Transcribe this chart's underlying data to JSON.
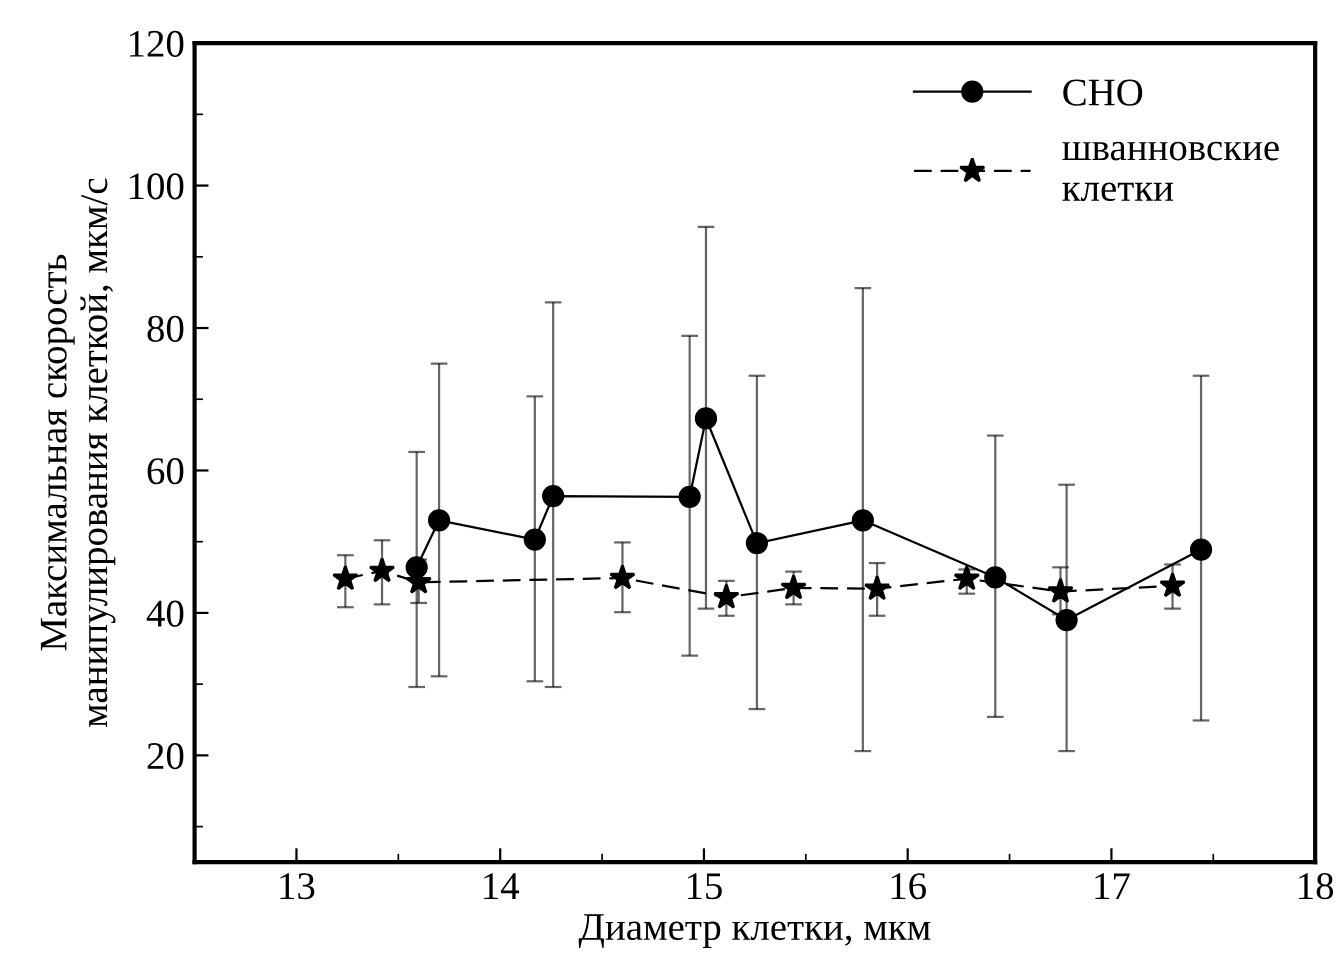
{
  "chart_data": {
    "type": "line",
    "xlabel": "Диаметр клетки, мкм",
    "ylabel": "Максимальная скорость\nманипулирования клеткой, мкм/с",
    "xlim": [
      12.5,
      18
    ],
    "xticks": [
      13,
      14,
      15,
      16,
      17,
      18
    ],
    "ylim": [
      5,
      120
    ],
    "yticks": [
      20,
      40,
      60,
      80,
      100,
      120
    ],
    "grid": false,
    "legend": "top right",
    "series": [
      {
        "name": "CHO",
        "color": "#000000",
        "marker": "circle",
        "line_style": "solid",
        "x": [
          13.59,
          13.7,
          14.17,
          14.26,
          14.93,
          15.01,
          15.26,
          15.78,
          16.43,
          16.78,
          17.44
        ],
        "values": [
          46.4,
          53.0,
          50.3,
          56.4,
          56.3,
          67.3,
          49.8,
          53.0,
          45.0,
          39.0,
          48.9
        ],
        "errors": [
          [
            29.6,
            62.6
          ],
          [
            31.1,
            75.0
          ],
          [
            30.4,
            70.4
          ],
          [
            29.6,
            83.6
          ],
          [
            34.0,
            78.9
          ],
          [
            40.6,
            94.2
          ],
          [
            26.5,
            73.3
          ],
          [
            20.6,
            85.6
          ],
          [
            25.4,
            64.9
          ],
          [
            20.6,
            58.0
          ],
          [
            24.9,
            73.3
          ]
        ]
      },
      {
        "name": "шванновские\nклетки",
        "color": "#000000",
        "marker": "star",
        "line_style": "dashed",
        "x": [
          13.24,
          13.42,
          13.6,
          14.6,
          15.11,
          15.44,
          15.85,
          16.29,
          16.75,
          17.3
        ],
        "values": [
          44.8,
          45.9,
          44.3,
          44.9,
          42.2,
          43.5,
          43.4,
          44.8,
          43.0,
          43.8
        ],
        "errors": [
          [
            40.8,
            48.1
          ],
          [
            41.2,
            50.2
          ],
          [
            41.4,
            47.5
          ],
          [
            40.1,
            49.9
          ],
          [
            39.6,
            44.5
          ],
          [
            41.2,
            45.8
          ],
          [
            39.6,
            47.0
          ],
          [
            42.7,
            46.1
          ],
          [
            39.8,
            46.4
          ],
          [
            40.6,
            46.8
          ]
        ]
      }
    ]
  }
}
